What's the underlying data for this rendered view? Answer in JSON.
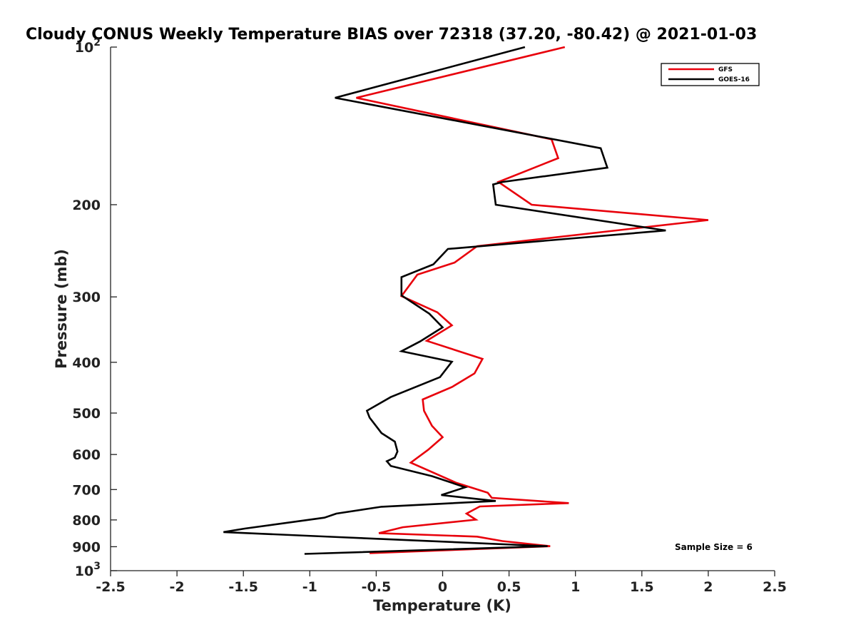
{
  "chart_data": {
    "type": "line",
    "title": "Cloudy CONUS Weekly Temperature BIAS over 72318 (37.20, -80.42) @ 2021-01-03",
    "xlabel": "Temperature (K)",
    "ylabel": "Pressure (mb)",
    "xlim": [
      -2.5,
      2.5
    ],
    "ylim": [
      100,
      1000
    ],
    "yscale": "log",
    "y_reversed": true,
    "grid": false,
    "x_ticks": [
      {
        "value": -2.5,
        "label": "-2.5"
      },
      {
        "value": -2,
        "label": "-2"
      },
      {
        "value": -1.5,
        "label": "-1.5"
      },
      {
        "value": -1,
        "label": "-1"
      },
      {
        "value": -0.5,
        "label": "-0.5"
      },
      {
        "value": 0,
        "label": "0"
      },
      {
        "value": 0.5,
        "label": "0.5"
      },
      {
        "value": 1,
        "label": "1"
      },
      {
        "value": 1.5,
        "label": "1.5"
      },
      {
        "value": 2,
        "label": "2"
      },
      {
        "value": 2.5,
        "label": "2.5"
      }
    ],
    "y_ticks": [
      {
        "value": 100,
        "label": "10",
        "exponent": "2"
      },
      {
        "value": 200,
        "label": "200"
      },
      {
        "value": 300,
        "label": "300"
      },
      {
        "value": 400,
        "label": "400"
      },
      {
        "value": 500,
        "label": "500"
      },
      {
        "value": 600,
        "label": "600"
      },
      {
        "value": 700,
        "label": "700"
      },
      {
        "value": 800,
        "label": "800"
      },
      {
        "value": 900,
        "label": "900"
      },
      {
        "value": 1000,
        "label": "10",
        "exponent": "3"
      }
    ],
    "legend": {
      "position": "top-right",
      "entries": [
        "GFS",
        "GOES-16"
      ]
    },
    "annotations": [
      {
        "text": "Sample Size = 6",
        "position": "bottom-right"
      }
    ],
    "series": [
      {
        "name": "GFS",
        "color": "#e8000b",
        "x": [
          0.92,
          -0.65,
          0.82,
          0.87,
          0.42,
          0.67,
          2.0,
          0.26,
          0.09,
          -0.19,
          -0.31,
          -0.04,
          0.07,
          -0.12,
          0.3,
          0.24,
          0.07,
          -0.15,
          -0.14,
          -0.08,
          0.0,
          -0.11,
          -0.24,
          0.1,
          0.34,
          0.37,
          0.95,
          0.28,
          0.18,
          0.25,
          -0.3,
          -0.48,
          0.26,
          0.45,
          0.81,
          -0.55
        ],
        "pressure": [
          100,
          125,
          150,
          163,
          181,
          200,
          214,
          240,
          258,
          272,
          299,
          321,
          340,
          364,
          394,
          420,
          446,
          471,
          495,
          529,
          556,
          588,
          622,
          679,
          710,
          726,
          743,
          754,
          778,
          799,
          826,
          848,
          861,
          878,
          898,
          926
        ]
      },
      {
        "name": "GOES-16",
        "color": "#000000",
        "x": [
          0.62,
          -0.81,
          1.19,
          1.24,
          0.45,
          0.38,
          0.4,
          1.68,
          0.04,
          -0.07,
          -0.31,
          -0.31,
          -0.1,
          0.0,
          -0.17,
          -0.31,
          0.07,
          -0.02,
          -0.39,
          -0.57,
          -0.55,
          -0.46,
          -0.36,
          -0.34,
          -0.36,
          -0.42,
          -0.39,
          -0.08,
          0.17,
          -0.01,
          0.4,
          -0.46,
          -0.8,
          -0.89,
          -1.49,
          -1.65,
          -0.78,
          0.79,
          -1.04
        ],
        "pressure": [
          100,
          125,
          156,
          170,
          181,
          183,
          200,
          224,
          243,
          260,
          275,
          298,
          323,
          343,
          365,
          381,
          399,
          427,
          466,
          495,
          510,
          546,
          567,
          592,
          608,
          618,
          631,
          660,
          693,
          717,
          736,
          755,
          778,
          792,
          831,
          844,
          863,
          898,
          929
        ]
      }
    ]
  }
}
